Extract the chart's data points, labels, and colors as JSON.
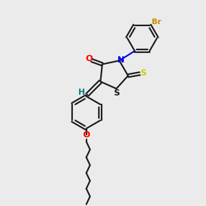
{
  "background_color": "#ebebeb",
  "bond_color": "#1a1a1a",
  "atom_colors": {
    "O": "#ff0000",
    "N": "#0000ee",
    "S_thioxo": "#cccc00",
    "S_ring": "#1a1a1a",
    "Br": "#cc8800",
    "H": "#008080",
    "C": "#1a1a1a"
  },
  "figsize": [
    3.0,
    3.0
  ],
  "dpi": 100
}
